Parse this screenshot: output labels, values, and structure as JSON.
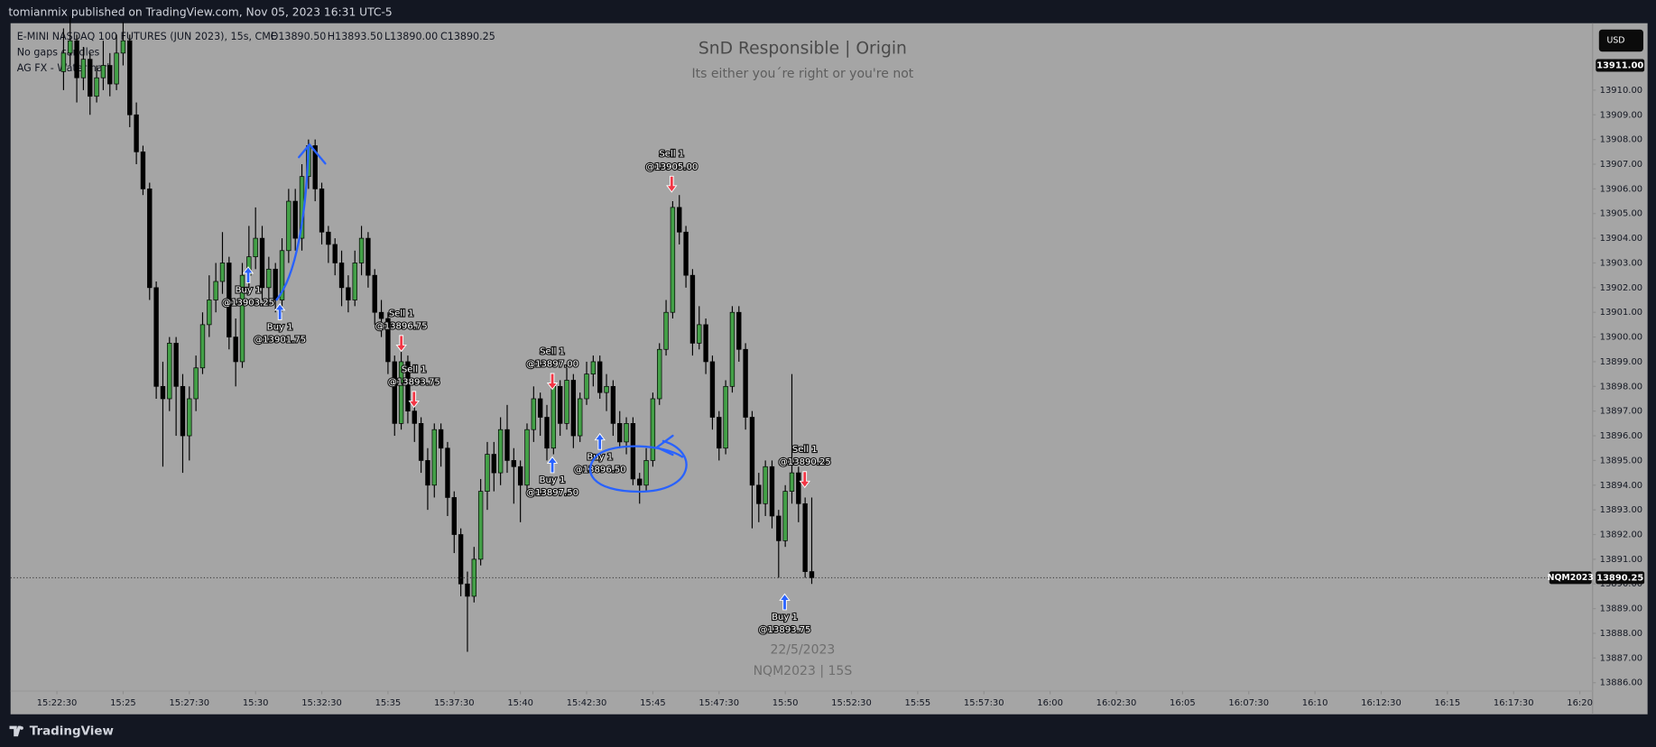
{
  "header": {
    "publisher": "tomianmix published on TradingView.com, Nov 05, 2023 16:31 UTC-5"
  },
  "toolbar": {
    "currency": "USD"
  },
  "footer": {
    "brand": "TradingView"
  },
  "chart_data": {
    "type": "candlestick",
    "title": "SnD Responsible | Origin",
    "subtitle": "Its either you´re right or you're not",
    "annotations": [
      "22/5/2023",
      "NQM2023 | 15S"
    ],
    "legend_values": [
      "O13890.50",
      "H13893.50",
      "L13890.00",
      "C13890.25"
    ],
    "indicators": [
      "No gaps candles",
      "AG FX - Watermark"
    ],
    "color_up": "#43a047",
    "color_down": "#000000",
    "xlim": [
      55245,
      58829
    ],
    "ylim": [
      13884.72,
      13912.71
    ],
    "xticks": [
      {
        "value": 55350,
        "label": "15:22:30"
      },
      {
        "value": 55500,
        "label": "15:25"
      },
      {
        "value": 55650,
        "label": "15:27:30"
      },
      {
        "value": 55800,
        "label": "15:30"
      },
      {
        "value": 55950,
        "label": "15:32:30"
      },
      {
        "value": 56100,
        "label": "15:35"
      },
      {
        "value": 56250,
        "label": "15:37:30"
      },
      {
        "value": 56400,
        "label": "15:40"
      },
      {
        "value": 56550,
        "label": "15:42:30"
      },
      {
        "value": 56700,
        "label": "15:45"
      },
      {
        "value": 56850,
        "label": "15:47:30"
      },
      {
        "value": 57000,
        "label": "15:50"
      },
      {
        "value": 57150,
        "label": "15:52:30"
      },
      {
        "value": 57300,
        "label": "15:55"
      },
      {
        "value": 57450,
        "label": "15:57:30"
      },
      {
        "value": 57600,
        "label": "16:00"
      },
      {
        "value": 57750,
        "label": "16:02:30"
      },
      {
        "value": 57900,
        "label": "16:05"
      },
      {
        "value": 58050,
        "label": "16:07:30"
      },
      {
        "value": 58200,
        "label": "16:10"
      },
      {
        "value": 58350,
        "label": "16:12:30"
      },
      {
        "value": 58500,
        "label": "16:15"
      },
      {
        "value": 58650,
        "label": "16:17:30"
      },
      {
        "value": 58800,
        "label": "16:20"
      }
    ],
    "yticks": [
      {
        "value": 13886,
        "label": "13886.00"
      },
      {
        "value": 13887,
        "label": "13887.00"
      },
      {
        "value": 13888,
        "label": "13888.00"
      },
      {
        "value": 13889,
        "label": "13889.00"
      },
      {
        "value": 13890,
        "label": "13890.00"
      },
      {
        "value": 13891,
        "label": "13891.00"
      },
      {
        "value": 13892,
        "label": "13892.00"
      },
      {
        "value": 13893,
        "label": "13893.00"
      },
      {
        "value": 13894,
        "label": "13894.00"
      },
      {
        "value": 13895,
        "label": "13895.00"
      },
      {
        "value": 13896,
        "label": "13896.00"
      },
      {
        "value": 13897,
        "label": "13897.00"
      },
      {
        "value": 13898,
        "label": "13898.00"
      },
      {
        "value": 13899,
        "label": "13899.00"
      },
      {
        "value": 13900,
        "label": "13900.00"
      },
      {
        "value": 13901,
        "label": "13901.00"
      },
      {
        "value": 13902,
        "label": "13902.00"
      },
      {
        "value": 13903,
        "label": "13903.00"
      },
      {
        "value": 13904,
        "label": "13904.00"
      },
      {
        "value": 13905,
        "label": "13905.00"
      },
      {
        "value": 13906,
        "label": "13906.00"
      },
      {
        "value": 13907,
        "label": "13907.00"
      },
      {
        "value": 13908,
        "label": "13908.00"
      },
      {
        "value": 13909,
        "label": "13909.00"
      },
      {
        "value": 13910,
        "label": "13910.00"
      }
    ],
    "price_labels": [
      {
        "value": 13911,
        "label": "13911.00"
      },
      {
        "value": 13890.25,
        "label": "13890.25"
      }
    ],
    "symbol_label": "NQM2023",
    "trades": [
      {
        "text": "Buy 1",
        "price": "@13903.25"
      },
      {
        "text": "Buy 1",
        "price": "@13901.75"
      },
      {
        "text": "Sell 1",
        "price": "@13896.75"
      },
      {
        "text": "Sell 1",
        "price": "@13893.75"
      },
      {
        "text": "Sell 1",
        "price": "@13897.00"
      },
      {
        "text": "Buy 1",
        "price": "@13897.50"
      },
      {
        "text": "Buy 1",
        "price": "@13896.50"
      },
      {
        "text": "Sell 1",
        "price": "@13905.00"
      },
      {
        "text": "Buy 1",
        "price": "@13893.75"
      },
      {
        "text": "Sell 1",
        "price": "@13890.25"
      }
    ],
    "x": [
      55365,
      55380,
      55395,
      55410,
      55425,
      55440,
      55455,
      55470,
      55485,
      55500,
      55515,
      55530,
      55545,
      55560,
      55575,
      55590,
      55605,
      55620,
      55635,
      55650,
      55665,
      55680,
      55695,
      55710,
      55725,
      55740,
      55755,
      55770,
      55785,
      55800,
      55815,
      55830,
      55845,
      55860,
      55875,
      55890,
      55905,
      55920,
      55935,
      55950,
      55965,
      55980,
      55995,
      56010,
      56025,
      56040,
      56055,
      56070,
      56085,
      56100,
      56115,
      56130,
      56145,
      56160,
      56175,
      56190,
      56205,
      56220,
      56235,
      56250,
      56265,
      56280,
      56295,
      56310,
      56325,
      56340,
      56355,
      56370,
      56385,
      56400,
      56415,
      56430,
      56445,
      56460,
      56475,
      56490,
      56505,
      56520,
      56535,
      56550,
      56565,
      56580,
      56595,
      56610,
      56625,
      56640,
      56655,
      56670,
      56685,
      56700,
      56715,
      56730,
      56745,
      56760,
      56775,
      56790,
      56805,
      56820,
      56835,
      56850,
      56865,
      56880,
      56895,
      56910,
      56925,
      56940,
      56955,
      56970,
      56985,
      57000,
      57015,
      57030,
      57045,
      57060
    ],
    "series": [
      {
        "name": "E-MINI NASDAQ 100 FUTURES (JUN 2023), 15s, CME",
        "values": [
          [
            13910.75,
            13912.5,
            13910,
            13911.5
          ],
          [
            13911.5,
            13913,
            13911,
            13912
          ],
          [
            13912,
            13912.25,
            13909.5,
            13910.5
          ],
          [
            13910.5,
            13911.75,
            13910,
            13911.25
          ],
          [
            13911.25,
            13911.5,
            13909,
            13909.75
          ],
          [
            13909.75,
            13911,
            13909.5,
            13910.5
          ],
          [
            13910.5,
            13912,
            13910,
            13911
          ],
          [
            13911,
            13911.5,
            13909.75,
            13910.25
          ],
          [
            13910.25,
            13912.25,
            13910,
            13911.5
          ],
          [
            13911.5,
            13912.75,
            13911,
            13912
          ],
          [
            13912,
            13912.25,
            13908.5,
            13909
          ],
          [
            13909,
            13909.5,
            13907,
            13907.5
          ],
          [
            13907.5,
            13907.75,
            13905.75,
            13906
          ],
          [
            13906,
            13906.25,
            13901.5,
            13902
          ],
          [
            13902,
            13902.25,
            13897.5,
            13898
          ],
          [
            13898,
            13899,
            13894.75,
            13897.5
          ],
          [
            13897.5,
            13900,
            13897,
            13899.75
          ],
          [
            13899.75,
            13900,
            13896,
            13898
          ],
          [
            13898,
            13898.5,
            13894.5,
            13896
          ],
          [
            13896,
            13898,
            13895,
            13897.5
          ],
          [
            13897.5,
            13899.25,
            13897,
            13898.75
          ],
          [
            13898.75,
            13901,
            13898.5,
            13900.5
          ],
          [
            13900.5,
            13902.5,
            13900,
            13901.5
          ],
          [
            13901.5,
            13903,
            13901,
            13902.25
          ],
          [
            13902.25,
            13904.25,
            13901.75,
            13903
          ],
          [
            13903,
            13903.25,
            13899.5,
            13900
          ],
          [
            13900,
            13900.75,
            13898,
            13899
          ],
          [
            13899,
            13903,
            13898.75,
            13902.5
          ],
          [
            13902.5,
            13904.5,
            13902,
            13903.25
          ],
          [
            13903.25,
            13905.25,
            13902.75,
            13904
          ],
          [
            13904,
            13904.5,
            13901.5,
            13902
          ],
          [
            13902,
            13903.25,
            13901.25,
            13902.75
          ],
          [
            13902.75,
            13903,
            13901,
            13901.5
          ],
          [
            13901.5,
            13904,
            13901,
            13903.5
          ],
          [
            13903.5,
            13906,
            13903,
            13905.5
          ],
          [
            13905.5,
            13906,
            13903.5,
            13904
          ],
          [
            13904,
            13907,
            13903.5,
            13906.5
          ],
          [
            13906.5,
            13908,
            13906,
            13907.75
          ],
          [
            13907.75,
            13908,
            13905.5,
            13906
          ],
          [
            13906,
            13906.25,
            13903.75,
            13904.25
          ],
          [
            13904.25,
            13904.5,
            13903,
            13903.75
          ],
          [
            13903.75,
            13904,
            13902.5,
            13903
          ],
          [
            13903,
            13903.5,
            13901.25,
            13902
          ],
          [
            13902,
            13902.5,
            13901,
            13901.5
          ],
          [
            13901.5,
            13903.5,
            13901.25,
            13903
          ],
          [
            13903,
            13904.5,
            13902.5,
            13904
          ],
          [
            13904,
            13904.25,
            13902,
            13902.5
          ],
          [
            13902.5,
            13902.75,
            13900.5,
            13901
          ],
          [
            13901,
            13901.5,
            13900,
            13900.75
          ],
          [
            13900.75,
            13901,
            13898.5,
            13899
          ],
          [
            13899,
            13899.25,
            13896,
            13896.5
          ],
          [
            13896.5,
            13899.5,
            13896.25,
            13899
          ],
          [
            13899,
            13899.25,
            13896.5,
            13897
          ],
          [
            13897,
            13897.5,
            13895.75,
            13896.5
          ],
          [
            13896.5,
            13896.75,
            13894.5,
            13895
          ],
          [
            13895,
            13895.5,
            13893,
            13894
          ],
          [
            13894,
            13896.5,
            13893.5,
            13896.25
          ],
          [
            13896.25,
            13896.5,
            13894.75,
            13895.5
          ],
          [
            13895.5,
            13895.75,
            13892.75,
            13893.5
          ],
          [
            13893.5,
            13893.75,
            13891.25,
            13892
          ],
          [
            13892,
            13892.25,
            13889.5,
            13890
          ],
          [
            13890,
            13890.5,
            13887.25,
            13889.5
          ],
          [
            13889.5,
            13891.5,
            13889.25,
            13891
          ],
          [
            13891,
            13894.25,
            13890.75,
            13893.75
          ],
          [
            13893.75,
            13895.75,
            13893,
            13895.25
          ],
          [
            13895.25,
            13895.75,
            13893.75,
            13894.5
          ],
          [
            13894.5,
            13896.75,
            13894,
            13896.25
          ],
          [
            13896.25,
            13897.25,
            13894.5,
            13895
          ],
          [
            13895,
            13895.5,
            13893.25,
            13894.75
          ],
          [
            13894.75,
            13895,
            13892.5,
            13894
          ],
          [
            13894,
            13896.5,
            13893.75,
            13896.25
          ],
          [
            13896.25,
            13898,
            13895.75,
            13897.5
          ],
          [
            13897.5,
            13897.75,
            13896,
            13896.75
          ],
          [
            13896.75,
            13897.25,
            13895,
            13895.5
          ],
          [
            13895.5,
            13898.25,
            13895.25,
            13898
          ],
          [
            13898,
            13898.25,
            13896,
            13896.5
          ],
          [
            13896.5,
            13898.75,
            13896.25,
            13898.25
          ],
          [
            13898.25,
            13898.5,
            13895.5,
            13896
          ],
          [
            13896,
            13897.75,
            13895.75,
            13897.5
          ],
          [
            13897.5,
            13899,
            13897.25,
            13898.5
          ],
          [
            13898.5,
            13899.25,
            13898,
            13899
          ],
          [
            13899,
            13899.25,
            13897.5,
            13897.75
          ],
          [
            13897.75,
            13898.5,
            13897,
            13898
          ],
          [
            13898,
            13898.25,
            13896,
            13896.5
          ],
          [
            13896.5,
            13897,
            13895.5,
            13895.75
          ],
          [
            13895.75,
            13896.75,
            13895.25,
            13896.5
          ],
          [
            13896.5,
            13896.75,
            13894,
            13894.25
          ],
          [
            13894.25,
            13894.5,
            13893.25,
            13894
          ],
          [
            13894,
            13895.5,
            13893.75,
            13895
          ],
          [
            13895,
            13897.75,
            13894.75,
            13897.5
          ],
          [
            13897.5,
            13899.75,
            13897.25,
            13899.5
          ],
          [
            13899.5,
            13901.5,
            13899.25,
            13901
          ],
          [
            13901,
            13905.5,
            13900.75,
            13905.25
          ],
          [
            13905.25,
            13905.75,
            13903.75,
            13904.25
          ],
          [
            13904.25,
            13904.5,
            13902,
            13902.5
          ],
          [
            13902.5,
            13902.75,
            13899.25,
            13899.75
          ],
          [
            13899.75,
            13901.25,
            13899.5,
            13900.5
          ],
          [
            13900.5,
            13900.75,
            13898.5,
            13899
          ],
          [
            13899,
            13899.25,
            13896.25,
            13896.75
          ],
          [
            13896.75,
            13897,
            13895,
            13895.5
          ],
          [
            13895.5,
            13898.25,
            13895.25,
            13898
          ],
          [
            13898,
            13901.25,
            13897.75,
            13901
          ],
          [
            13901,
            13901.25,
            13899,
            13899.5
          ],
          [
            13899.5,
            13899.75,
            13896.25,
            13896.75
          ],
          [
            13896.75,
            13897,
            13892.25,
            13894
          ],
          [
            13894,
            13894.5,
            13892.5,
            13893.25
          ],
          [
            13893.25,
            13895,
            13892.75,
            13894.75
          ],
          [
            13894.75,
            13895,
            13892.25,
            13892.75
          ],
          [
            13892.75,
            13893,
            13890.25,
            13891.75
          ],
          [
            13891.75,
            13894,
            13891.5,
            13893.75
          ],
          [
            13893.75,
            13898.5,
            13893.25,
            13894.5
          ],
          [
            13894.5,
            13894.75,
            13892.5,
            13893.25
          ],
          [
            13893.25,
            13893.5,
            13890.25,
            13890.5
          ],
          [
            13890.5,
            13893.5,
            13890,
            13890.25
          ]
        ]
      }
    ]
  }
}
